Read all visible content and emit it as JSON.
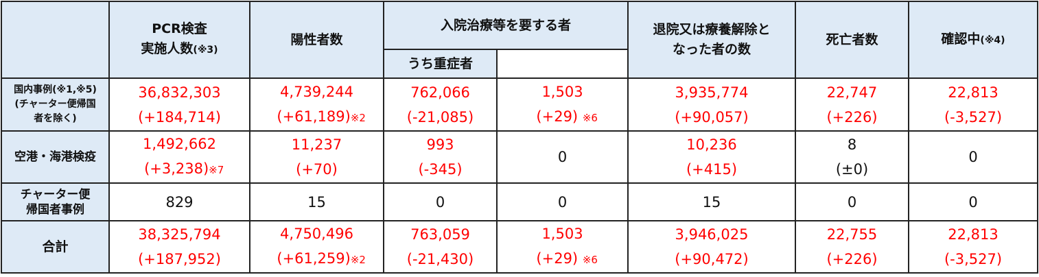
{
  "header": {
    "pcr": "PCR検査",
    "pcr2": "実施人数",
    "pcr_note": "(※3)",
    "positive": "陽性者数",
    "hospital": "入院治療等を要する者",
    "severe": "うち重症者",
    "discharged": "退院又は療養解除と",
    "discharged2": "なった者の数",
    "deaths": "死亡者数",
    "confirming": "確認中",
    "confirming_note": "(※4)"
  },
  "rows": [
    {
      "label": "国内事例(※1,※5)",
      "label2": "(チャーター便帰国",
      "label3": "者を除く)",
      "pcr": "36,832,303",
      "pcr_d": "(+184,714)",
      "pcr_note": "",
      "positive": "4,739,244",
      "positive_d": "(+61,189)",
      "positive_note": "※2",
      "hospital": "762,066",
      "hospital_d": "(-21,085)",
      "severe": "1,503",
      "severe_d": "(+29)",
      "severe_note": "※6",
      "discharged": "3,935,774",
      "discharged_d": "(+90,057)",
      "deaths": "22,747",
      "deaths_d": "(+226)",
      "confirming": "22,813",
      "confirming_d": "(-3,527)"
    },
    {
      "label": "空港・海港検疫",
      "pcr": "1,492,662",
      "pcr_d": "(+3,238)",
      "pcr_note": "※7",
      "positive": "11,237",
      "positive_d": "(+70)",
      "hospital": "993",
      "hospital_d": "(-345)",
      "severe": "0",
      "discharged": "10,236",
      "discharged_d": "(+415)",
      "deaths": "8",
      "deaths_d": "(±0)",
      "confirming": "0"
    },
    {
      "label": "チャーター便",
      "label2": "帰国者事例",
      "pcr": "829",
      "positive": "15",
      "hospital": "0",
      "severe": "0",
      "discharged": "15",
      "deaths": "0",
      "confirming": "0"
    },
    {
      "label": "合計",
      "pcr": "38,325,794",
      "pcr_d": "(+187,952)",
      "positive": "4,750,496",
      "positive_d": "(+61,259)",
      "positive_note": "※2",
      "hospital": "763,059",
      "hospital_d": "(-21,430)",
      "severe": "1,503",
      "severe_d": "(+29)",
      "severe_note": "※6",
      "discharged": "3,946,025",
      "discharged_d": "(+90,472)",
      "deaths": "22,755",
      "deaths_d": "(+226)",
      "confirming": "22,813",
      "confirming_d": "(-3,527)"
    }
  ],
  "colors": {
    "header_bg": "#deeaf6",
    "highlight": "#ff0000"
  }
}
